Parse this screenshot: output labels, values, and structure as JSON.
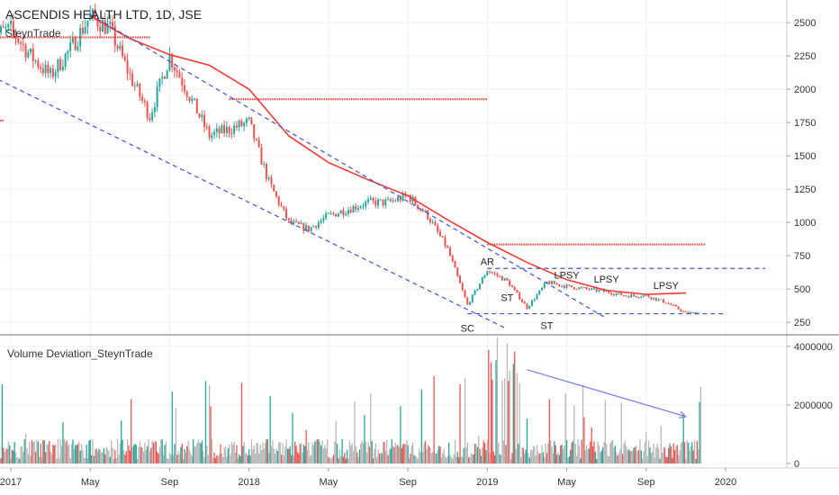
{
  "chart_data": {
    "type": "line",
    "title": "ASCENDIS HEALTH LTD, 1D, JSE",
    "subtitle": "SteynTrade",
    "x_axis": {
      "tick_labels": [
        "2017",
        "May",
        "Sep",
        "2018",
        "May",
        "Sep",
        "2019",
        "May",
        "Sep",
        "2020"
      ],
      "range": [
        "2016-12",
        "2020-04"
      ]
    },
    "price_axis": {
      "ticks": [
        250,
        500,
        750,
        1000,
        1250,
        1500,
        1750,
        2000,
        2250,
        2500
      ],
      "ylim": [
        170,
        2670
      ]
    },
    "price_series": {
      "name": "Price",
      "x": [
        "2016-12",
        "2017-01",
        "2017-02",
        "2017-03",
        "2017-04",
        "2017-05",
        "2017-06",
        "2017-07",
        "2017-08",
        "2017-09",
        "2017-10",
        "2017-11",
        "2017-12",
        "2018-01",
        "2018-02",
        "2018-03",
        "2018-04",
        "2018-05",
        "2018-06",
        "2018-07",
        "2018-08",
        "2018-09",
        "2018-10",
        "2018-11",
        "2018-12",
        "2019-01",
        "2019-02",
        "2019-03",
        "2019-04",
        "2019-05",
        "2019-06",
        "2019-07",
        "2019-08",
        "2019-09",
        "2019-10",
        "2019-11"
      ],
      "y": [
        2400,
        2450,
        2250,
        2100,
        2300,
        2550,
        2450,
        2100,
        1800,
        2250,
        1950,
        1650,
        1700,
        1750,
        1300,
        1000,
        950,
        1050,
        1100,
        1150,
        1150,
        1200,
        1050,
        800,
        380,
        640,
        560,
        360,
        550,
        520,
        500,
        480,
        450,
        450,
        400,
        320
      ]
    },
    "moving_average": {
      "name": "Moving Average",
      "x": [
        "2017-05",
        "2017-07",
        "2017-09",
        "2017-11",
        "2018-01",
        "2018-03",
        "2018-05",
        "2018-07",
        "2018-09",
        "2018-11",
        "2019-01",
        "2019-03",
        "2019-05",
        "2019-07",
        "2019-09",
        "2019-11"
      ],
      "y": [
        2550,
        2380,
        2260,
        2180,
        2000,
        1650,
        1450,
        1320,
        1200,
        1020,
        850,
        700,
        570,
        490,
        460,
        470
      ]
    },
    "resistance_lines": [
      {
        "y": 2390,
        "x_start": "2016-12",
        "x_end": "2017-08"
      },
      {
        "y": 1925,
        "x_start": "2017-12",
        "x_end": "2019-01"
      },
      {
        "y": 1765,
        "x_start": "2016-12",
        "x_end": "2016-12"
      },
      {
        "y": 835,
        "x_start": "2019-01",
        "x_end": "2019-12"
      }
    ],
    "range_lines": [
      {
        "y": 655,
        "x_start": "2019-01",
        "x_end": "2020-03"
      },
      {
        "y": 315,
        "x_start": "2018-12",
        "x_end": "2020-01"
      }
    ],
    "channel_lines": [
      {
        "from": [
          "2017-05",
          2560
        ],
        "to": [
          "2019-07",
          280
        ]
      },
      {
        "from": [
          "2016-12",
          2100
        ],
        "to": [
          "2019-02",
          200
        ]
      }
    ],
    "annotations": [
      {
        "text": "SC",
        "x": "2018-12",
        "y": 180
      },
      {
        "text": "AR",
        "x": "2019-01",
        "y": 680
      },
      {
        "text": "ST",
        "x": "2019-02",
        "y": 410
      },
      {
        "text": "ST",
        "x": "2019-04",
        "y": 200
      },
      {
        "text": "LPSY",
        "x": "2019-05",
        "y": 580
      },
      {
        "text": "LPSY",
        "x": "2019-07",
        "y": 550
      },
      {
        "text": "LPSY",
        "x": "2019-10",
        "y": 500
      }
    ],
    "volume_panel": {
      "title": "Volume Deviation_SteynTrade",
      "ticks": [
        0,
        2000000,
        4000000
      ],
      "ticks_labels": [
        "0",
        "2000000",
        "4000000"
      ],
      "ylim": [
        0,
        4300000
      ],
      "trend_arrow": {
        "from": [
          "2019-03",
          3200000
        ],
        "to": [
          "2019-11",
          1600000
        ]
      }
    },
    "grid": true,
    "colors": {
      "up": "#26a69a",
      "down": "#ef5350",
      "moving_average": "#ef3b36",
      "resistance": "#ef3b36",
      "dashed": "#3f51d8",
      "volume_neutral": "#b7b7b7",
      "arrow": "#7b83eb"
    }
  }
}
